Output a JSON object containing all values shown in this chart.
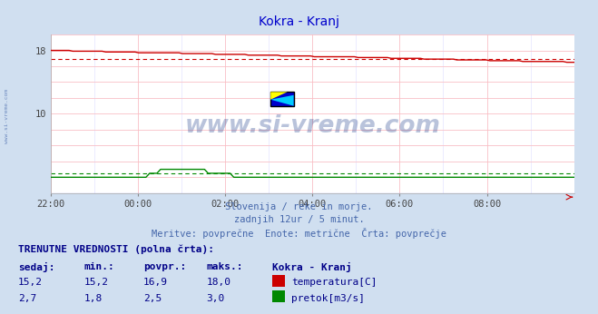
{
  "title": "Kokra - Kranj",
  "title_color": "#0000cc",
  "bg_color": "#d0dff0",
  "plot_bg_color": "#ffffff",
  "ylim": [
    0,
    20
  ],
  "xtick_labels": [
    "22:00",
    "00:00",
    "02:00",
    "04:00",
    "06:00",
    "08:00"
  ],
  "xtick_positions": [
    0,
    2,
    4,
    6,
    8,
    10
  ],
  "grid_color_h": "#ffbbbb",
  "grid_color_v": "#ffbbbb",
  "grid_color_minor": "#ddddff",
  "temp_color": "#cc0000",
  "flow_color": "#008800",
  "height_color": "#0000cc",
  "avg_temp": 16.9,
  "avg_flow": 2.5,
  "subtitle1": "Slovenija / reke in morje.",
  "subtitle2": "zadnjih 12ur / 5 minut.",
  "subtitle3": "Meritve: povprečne  Enote: metrične  Črta: povprečje",
  "subtitle_color": "#4466aa",
  "table_header": "TRENUTNE VREDNOSTI (polna črta):",
  "col_headers": [
    "sedaj:",
    "min.:",
    "povpr.:",
    "maks.:",
    "Kokra - Kranj"
  ],
  "row1": [
    "15,2",
    "15,2",
    "16,9",
    "18,0",
    "temperatura[C]"
  ],
  "row2": [
    "2,7",
    "1,8",
    "2,5",
    "3,0",
    "pretok[m3/s]"
  ],
  "table_color": "#000088",
  "watermark_text": "www.si-vreme.com",
  "watermark_color": "#1a3a8a",
  "watermark_alpha": 0.3,
  "side_text": "www.si-vreme.com",
  "side_text_color": "#4466aa"
}
